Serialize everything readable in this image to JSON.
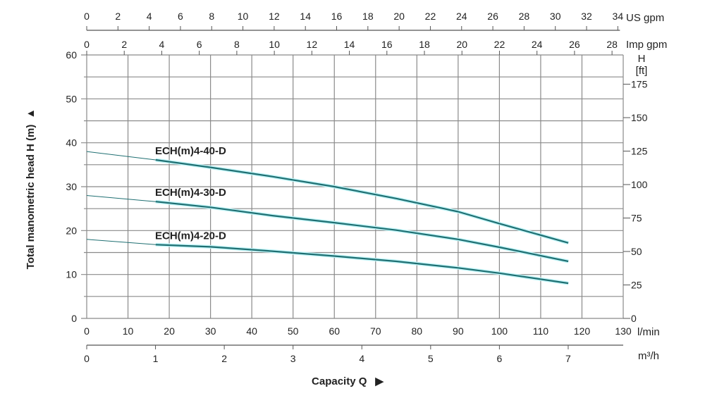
{
  "chart_data": {
    "type": "line",
    "title": "",
    "xlabel": "Capacity Q",
    "ylabel": "Total manometric head H (m)",
    "xlim": [
      0,
      130
    ],
    "ylim": [
      0,
      60
    ],
    "grid": true,
    "x_unit": "l/min",
    "x_ticks": [
      0,
      10,
      20,
      30,
      40,
      50,
      60,
      70,
      80,
      90,
      100,
      110,
      120,
      130
    ],
    "y_ticks": [
      0,
      10,
      20,
      30,
      40,
      50,
      60
    ],
    "secondary_axes": {
      "us_gpm": {
        "unit": "US gpm",
        "ticks": [
          0,
          2,
          4,
          6,
          8,
          10,
          12,
          14,
          16,
          18,
          20,
          22,
          24,
          26,
          28,
          30,
          32,
          34
        ]
      },
      "imp_gpm": {
        "unit": "Imp gpm",
        "ticks": [
          0,
          2,
          4,
          6,
          8,
          10,
          12,
          14,
          16,
          18,
          20,
          22,
          24,
          26,
          28
        ]
      },
      "m3h": {
        "unit": "m³/h",
        "ticks": [
          0,
          1,
          2,
          3,
          4,
          5,
          6,
          7
        ]
      },
      "ft": {
        "unit_top": "H",
        "unit": "[ft]",
        "ticks": [
          0,
          25,
          50,
          75,
          100,
          125,
          150,
          175
        ]
      }
    },
    "operating_range_lpm": [
      16.7,
      116.7
    ],
    "x": [
      0,
      16.7,
      30,
      45,
      60,
      75,
      90,
      100,
      116.7
    ],
    "series": [
      {
        "name": "ECH(m)4-40-D",
        "values": [
          38,
          36.1,
          34.4,
          32.3,
          30.0,
          27.3,
          24.3,
          21.6,
          17.2
        ]
      },
      {
        "name": "ECH(m)4-30-D",
        "values": [
          28,
          26.6,
          25.3,
          23.4,
          21.8,
          20.1,
          18.0,
          16.2,
          13.0
        ]
      },
      {
        "name": "ECH(m)4-20-D",
        "values": [
          18,
          16.8,
          16.3,
          15.3,
          14.2,
          13.0,
          11.5,
          10.3,
          8.0
        ]
      }
    ],
    "colors": {
      "curve": "#1f6f72",
      "curve_glow": "#bff4f7",
      "grid": "#8a8a8a"
    }
  }
}
